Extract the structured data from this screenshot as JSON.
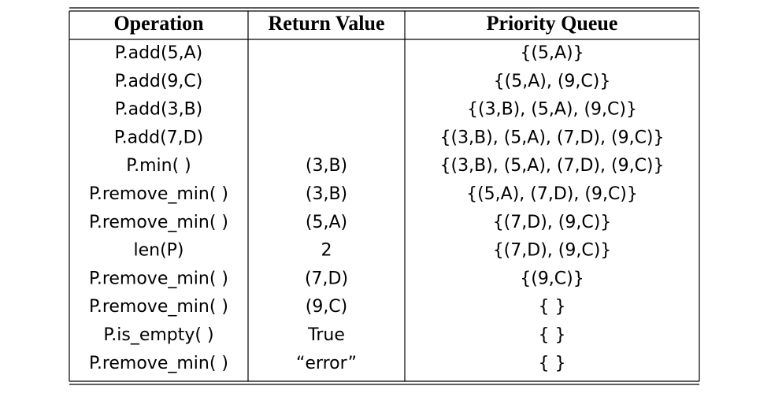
{
  "table": {
    "header": [
      "Operation",
      "Return Value",
      "Priority Queue"
    ],
    "rows": [
      {
        "operation": "P.add(5,A)",
        "queue": "{(5,A)}"
      },
      {
        "operation": "P.add(9,C)",
        "queue": "{(5,A), (9,C)}"
      },
      {
        "operation": "P.add(3,B)",
        "queue": "{(3,B), (5,A), (9,C)}"
      },
      {
        "operation": "P.add(7,D)",
        "queue": "{(3,B), (5,A), (7,D), (9,C)}"
      },
      {
        "operation": "P.min( )",
        "return_value": "(3,B)",
        "queue": "{(3,B), (5,A), (7,D), (9,C)}"
      },
      {
        "operation": "P.remove_min( )",
        "return_value": "(3,B)",
        "queue": "{(5,A), (7,D), (9,C)}"
      },
      {
        "operation": "P.remove_min( )",
        "return_value": "(5,A)",
        "queue": "{(7,D), (9,C)}"
      },
      {
        "operation": "len(P)",
        "return_value": "2",
        "queue": "{(7,D), (9,C)}"
      },
      {
        "operation": "P.remove_min( )",
        "return_value": "(7,D)",
        "queue": "{(9,C)}"
      },
      {
        "operation": "P.remove_min( )",
        "return_value": "(9,C)",
        "queue": "{ }"
      },
      {
        "operation": "P.is_empty( )",
        "return_value": "True",
        "queue": "{ }"
      },
      {
        "operation": "P.remove_min( )",
        "return_value": "“error”",
        "queue": "{ }"
      }
    ]
  }
}
